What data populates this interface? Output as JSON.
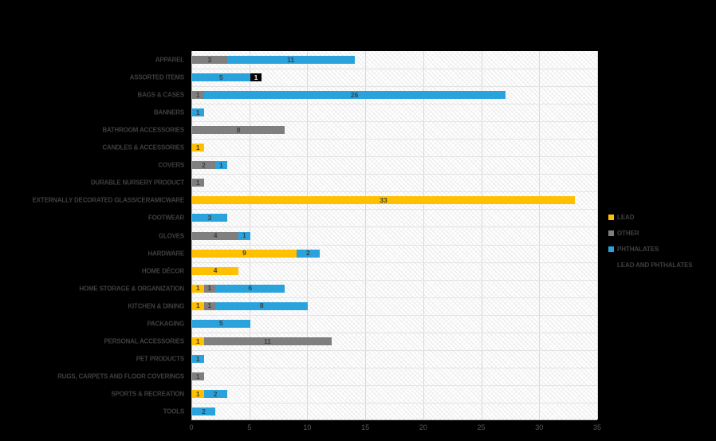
{
  "page": {
    "background_color": "#000000"
  },
  "chart_data": {
    "type": "bar",
    "orientation": "horizontal",
    "stacked": true,
    "title": "",
    "xlabel": "",
    "ylabel": "",
    "xlim": [
      0,
      35
    ],
    "x_ticks": [
      0,
      5,
      10,
      15,
      20,
      25,
      30,
      35
    ],
    "grid": true,
    "legend_position": "right",
    "plot_style": {
      "plot_background": "#ffffff",
      "hatch_color": "#ebebeb",
      "gridline_color": "#d9d9d9",
      "row_line_color": "#e3e3e3",
      "axis_line_color": "#bfbfbf",
      "axis_text_color": "#595959",
      "category_text_color": "#3f3f3f",
      "value_label_dark": "#404040",
      "value_label_light": "#ffffff"
    },
    "series": [
      {
        "name": "LEAD",
        "color": "#FFC000",
        "label_color": "dark"
      },
      {
        "name": "OTHER",
        "color": "#7F7F7F",
        "label_color": "dark"
      },
      {
        "name": "PHTHALATES",
        "color": "#2AA2DB",
        "label_color": "dark"
      },
      {
        "name": "LEAD AND PHTHALATES",
        "color": "#000000",
        "label_color": "light"
      }
    ],
    "categories": [
      "APPAREL",
      "ASSORTED ITEMS",
      "BAGS & CASES",
      "BANNERS",
      "BATHROOM ACCESSORIES",
      "CANDLES & ACCESSORIES",
      "COVERS",
      "DURABLE NURSERY PRODUCT",
      "EXTERNALLY DECORATED GLASS/CERAMICWARE",
      "FOOTWEAR",
      "GLOVES",
      "HARDWARE",
      "HOME DÉCOR",
      "HOME STORAGE & ORGANIZATION",
      "KITCHEN & DINING",
      "PACKAGING",
      "PERSONAL ACCESSORIES",
      "PET PRODUCTS",
      "RUGS, CARPETS AND FLOOR COVERINGS",
      "SPORTS & RECREATION",
      "TOOLS"
    ],
    "values": [
      [
        0,
        3,
        11,
        0
      ],
      [
        0,
        0,
        5,
        1
      ],
      [
        0,
        1,
        26,
        0
      ],
      [
        0,
        0,
        1,
        0
      ],
      [
        0,
        8,
        0,
        0
      ],
      [
        1,
        0,
        0,
        0
      ],
      [
        0,
        2,
        1,
        0
      ],
      [
        0,
        1,
        0,
        0
      ],
      [
        33,
        0,
        0,
        0
      ],
      [
        0,
        0,
        3,
        0
      ],
      [
        0,
        4,
        1,
        0
      ],
      [
        9,
        0,
        2,
        0
      ],
      [
        4,
        0,
        0,
        0
      ],
      [
        1,
        1,
        6,
        0
      ],
      [
        1,
        1,
        8,
        0
      ],
      [
        0,
        0,
        5,
        0
      ],
      [
        1,
        11,
        0,
        0
      ],
      [
        0,
        0,
        1,
        0
      ],
      [
        0,
        1,
        0,
        0
      ],
      [
        1,
        0,
        2,
        0
      ],
      [
        0,
        0,
        2,
        0
      ]
    ]
  }
}
